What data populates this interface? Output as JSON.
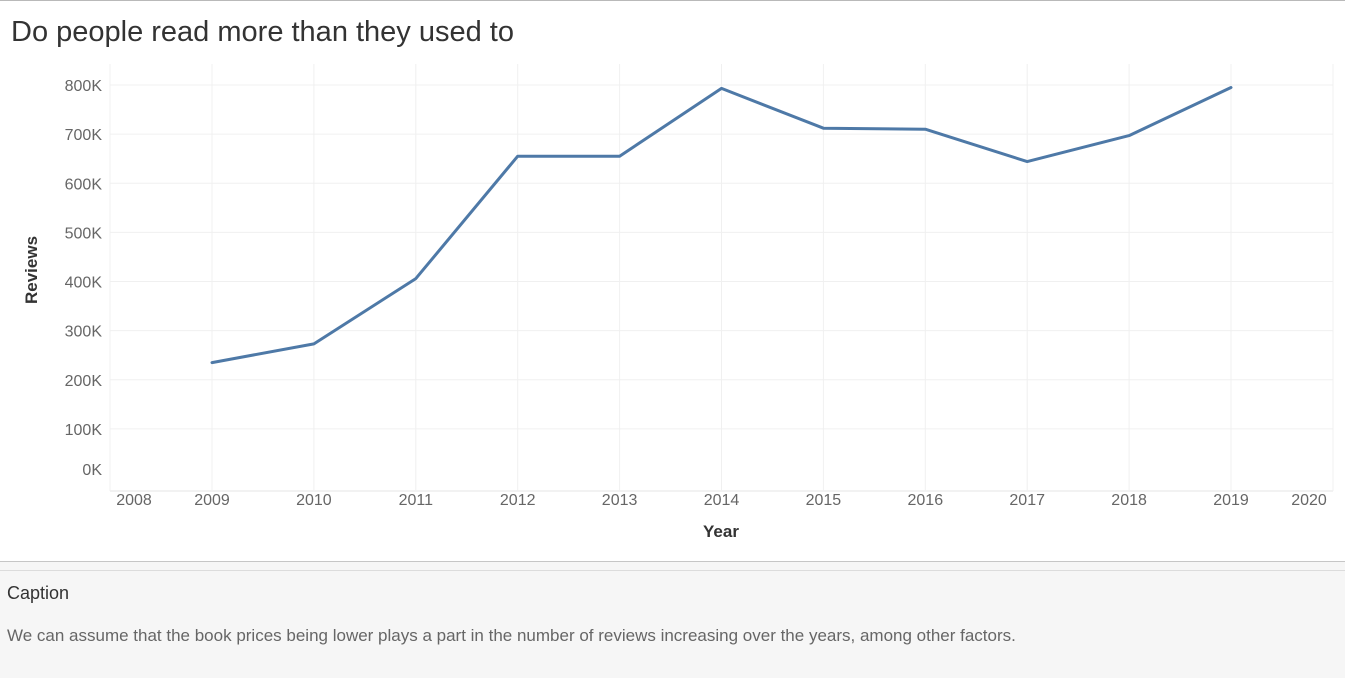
{
  "title": "Do people read more than they used to",
  "caption": {
    "title": "Caption",
    "text": "We can assume that the book prices being lower plays a part in the number of reviews increasing over the years, among other factors."
  },
  "colors": {
    "line": "#4e79a7",
    "grid": "#f0f0f0",
    "axis_text": "#666666"
  },
  "chart_data": {
    "type": "line",
    "xlabel": "Year",
    "ylabel": "Reviews",
    "x_ticks": [
      "2008",
      "2009",
      "2010",
      "2011",
      "2012",
      "2013",
      "2014",
      "2015",
      "2016",
      "2017",
      "2018",
      "2019",
      "2020"
    ],
    "y_ticks": [
      "0K",
      "100K",
      "200K",
      "300K",
      "400K",
      "500K",
      "600K",
      "700K",
      "800K"
    ],
    "xlim": [
      2008,
      2020
    ],
    "ylim": [
      0,
      800000
    ],
    "grid": true,
    "series": [
      {
        "x": [
          2009,
          2010,
          2011,
          2012,
          2013,
          2014,
          2015,
          2016,
          2017,
          2018,
          2019
        ],
        "values": [
          235000,
          273000,
          406000,
          655000,
          655000,
          793000,
          712000,
          710000,
          644000,
          697000,
          795000
        ]
      }
    ]
  }
}
